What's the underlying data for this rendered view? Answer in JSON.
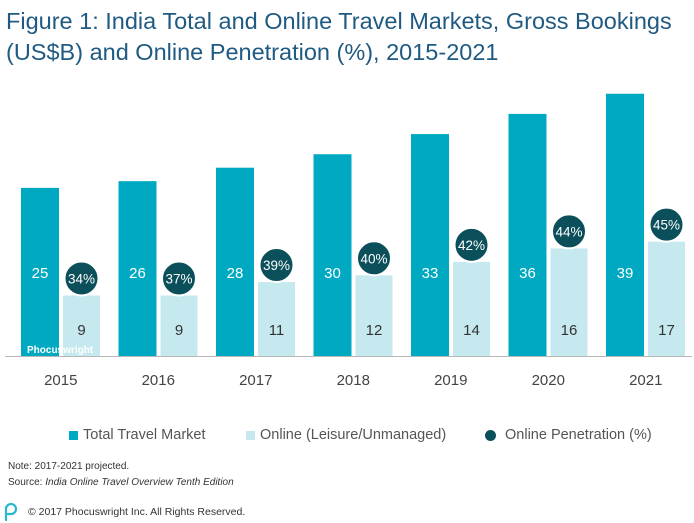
{
  "title": "Figure 1: India Total and Online Travel Markets, Gross Bookings (US$B) and Online Penetration (%), 2015-2021",
  "watermark": "Phocuswright",
  "colors": {
    "total": "#00a9c2",
    "online": "#c5e9ef",
    "penetration": "#0b4f5a",
    "title": "#1f5a82",
    "axis": "#b7b7b7"
  },
  "chart_data": {
    "type": "bar",
    "categories": [
      "2015",
      "2016",
      "2017",
      "2018",
      "2019",
      "2020",
      "2021"
    ],
    "series": [
      {
        "name": "Total Travel Market",
        "values": [
          25,
          26,
          28,
          30,
          33,
          36,
          39
        ]
      },
      {
        "name": "Online (Leisure/Unmanaged)",
        "values": [
          9,
          9,
          11,
          12,
          14,
          16,
          17
        ]
      }
    ],
    "penetration": {
      "name": "Online Penetration (%)",
      "values": [
        34,
        37,
        39,
        40,
        42,
        44,
        45
      ],
      "labels": [
        "34%",
        "37%",
        "39%",
        "40%",
        "42%",
        "44%",
        "45%"
      ]
    },
    "ylim": [
      0,
      40
    ],
    "grid": false,
    "legend_position": "bottom"
  },
  "legend": {
    "total": "Total Travel Market",
    "online": "Online (Leisure/Unmanaged)",
    "penetration": "Online Penetration (%)"
  },
  "note": "Note: 2017-2021 projected.",
  "source_prefix": "Source: ",
  "source_title": "India Online Travel Overview Tenth Edition",
  "copyright": "© 2017 Phocuswright Inc. All Rights Reserved."
}
